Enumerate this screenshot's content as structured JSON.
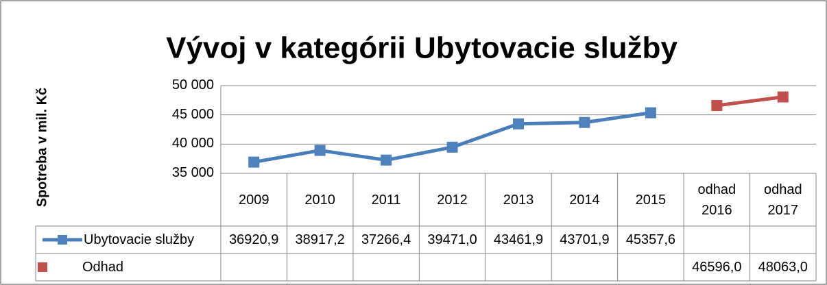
{
  "chart_data": {
    "type": "line",
    "title": "Vývoj v kategórii Ubytovacie služby",
    "y_label": "Spotreba v mil. Kč",
    "categories": [
      "2009",
      "2010",
      "2011",
      "2012",
      "2013",
      "2014",
      "2015",
      "odhad 2016",
      "odhad 2017"
    ],
    "series": [
      {
        "name": "Ubytovacie služby",
        "color": "#4a7ebb",
        "marker": "square",
        "values": [
          36920.9,
          38917.2,
          37266.4,
          39471.0,
          43461.9,
          43701.9,
          45357.6,
          null,
          null
        ],
        "value_labels": [
          "36920,9",
          "38917,2",
          "37266,4",
          "39471,0",
          "43461,9",
          "43701,9",
          "45357,6",
          null,
          null
        ]
      },
      {
        "name": "Odhad",
        "color": "#c0504d",
        "marker": "square",
        "values": [
          null,
          null,
          null,
          null,
          null,
          null,
          null,
          46596.0,
          48063.0
        ],
        "value_labels": [
          null,
          null,
          null,
          null,
          null,
          null,
          null,
          "46596,0",
          "48063,0"
        ]
      }
    ],
    "ylim": [
      35000,
      50000
    ],
    "yticks": [
      {
        "value": 35000,
        "label": "35 000"
      },
      {
        "value": 40000,
        "label": "40 000"
      },
      {
        "value": 45000,
        "label": "45 000"
      },
      {
        "value": 50000,
        "label": "50 000"
      }
    ],
    "grid": true,
    "data_table": true
  }
}
